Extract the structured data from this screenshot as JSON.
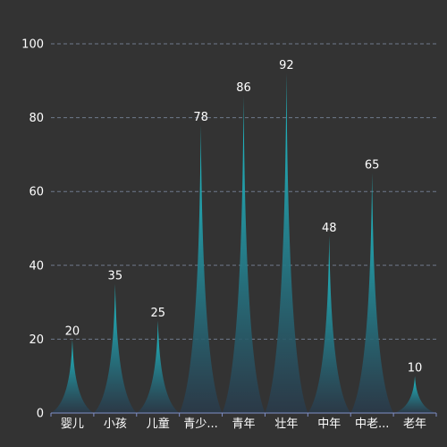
{
  "chart_data": {
    "type": "bar",
    "categories": [
      "婴儿",
      "小孩",
      "儿童",
      "青少...",
      "青年",
      "壮年",
      "中年",
      "中老...",
      "老年"
    ],
    "values": [
      20,
      35,
      25,
      78,
      86,
      92,
      48,
      65,
      10
    ],
    "ylim": [
      0,
      100
    ],
    "y_ticks": [
      0,
      20,
      40,
      60,
      80,
      100
    ],
    "grid": true,
    "title": "",
    "xlabel": "",
    "ylabel": "",
    "colors": {
      "peak_top": "#1ec8d2",
      "peak_bottom": "#2a3a4a",
      "background": "#333333",
      "grid": "#6f7a8c",
      "axis": "#7f8fc7",
      "text": "#ffffff"
    }
  }
}
